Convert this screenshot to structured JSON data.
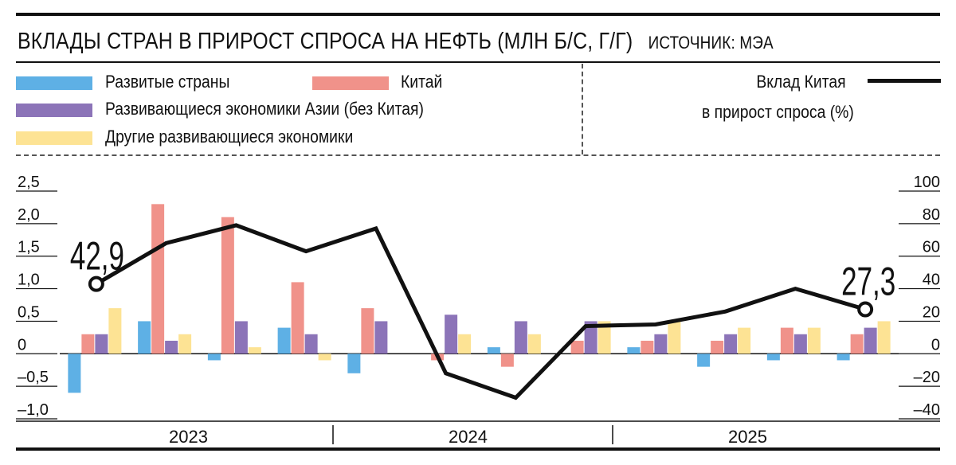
{
  "title": "ВКЛАДЫ СТРАН В ПРИРОСТ СПРОСА НА НЕФТЬ (МЛН Б/С, Г/Г)",
  "source": "ИСТОЧНИК: МЭА",
  "colors": {
    "developed": "#5eb0e5",
    "china": "#f0928a",
    "asia": "#8c74b8",
    "other": "#fde394",
    "line": "#111111"
  },
  "chart_data": {
    "type": "bar",
    "series": [
      {
        "name": "Развитые страны",
        "values": [
          -0.6,
          0.5,
          -0.1,
          0.4,
          -0.3,
          0.0,
          0.1,
          0.0,
          0.1,
          -0.2,
          -0.1,
          -0.1
        ]
      },
      {
        "name": "Китай",
        "values": [
          0.3,
          2.3,
          2.1,
          1.1,
          0.7,
          -0.1,
          -0.2,
          0.2,
          0.2,
          0.2,
          0.4,
          0.3
        ]
      },
      {
        "name": "Развивающиеся экономики Азии (без Китая)",
        "values": [
          0.3,
          0.2,
          0.5,
          0.3,
          0.5,
          0.6,
          0.5,
          0.5,
          0.3,
          0.3,
          0.3,
          0.4
        ]
      },
      {
        "name": "Другие развивающиеся экономики",
        "values": [
          0.7,
          0.3,
          0.1,
          -0.1,
          0.0,
          0.3,
          0.3,
          0.5,
          0.5,
          0.4,
          0.4,
          0.5
        ]
      }
    ],
    "line": {
      "name": "Вклад Китая в прирост спроса (%)",
      "values": [
        42.9,
        68,
        79,
        63,
        77,
        -12,
        -27,
        17,
        18,
        26,
        40,
        27.3
      ]
    },
    "years": [
      {
        "label": "2023",
        "quarters": 4
      },
      {
        "label": "2024",
        "quarters": 4
      },
      {
        "label": "2025",
        "quarters": 4
      }
    ],
    "left_axis": {
      "min": -1.0,
      "max": 2.5,
      "ticks": [
        2.5,
        2.0,
        1.5,
        1.0,
        0.5,
        0,
        -0.5,
        -1.0
      ],
      "tick_labels": [
        "2,5",
        "2,0",
        "1,5",
        "1,0",
        "0,5",
        "0",
        "–0,5",
        "–1,0"
      ]
    },
    "right_axis": {
      "min": -40,
      "max": 100,
      "ticks": [
        100,
        80,
        60,
        40,
        20,
        0,
        -20,
        -40
      ],
      "tick_labels": [
        "100",
        "80",
        "60",
        "40",
        "20",
        "0",
        "–20",
        "–40"
      ]
    },
    "annotations": {
      "first": "42,9",
      "last": "27,3"
    }
  },
  "legend": {
    "developed": "Развитые страны",
    "china": "Китай",
    "asia": "Развивающиеся экономики Азии (без Китая)",
    "other": "Другие развивающиеся экономики",
    "line_label_1": "Вклад Китая",
    "line_label_2": "в прирост спроса (%)"
  }
}
